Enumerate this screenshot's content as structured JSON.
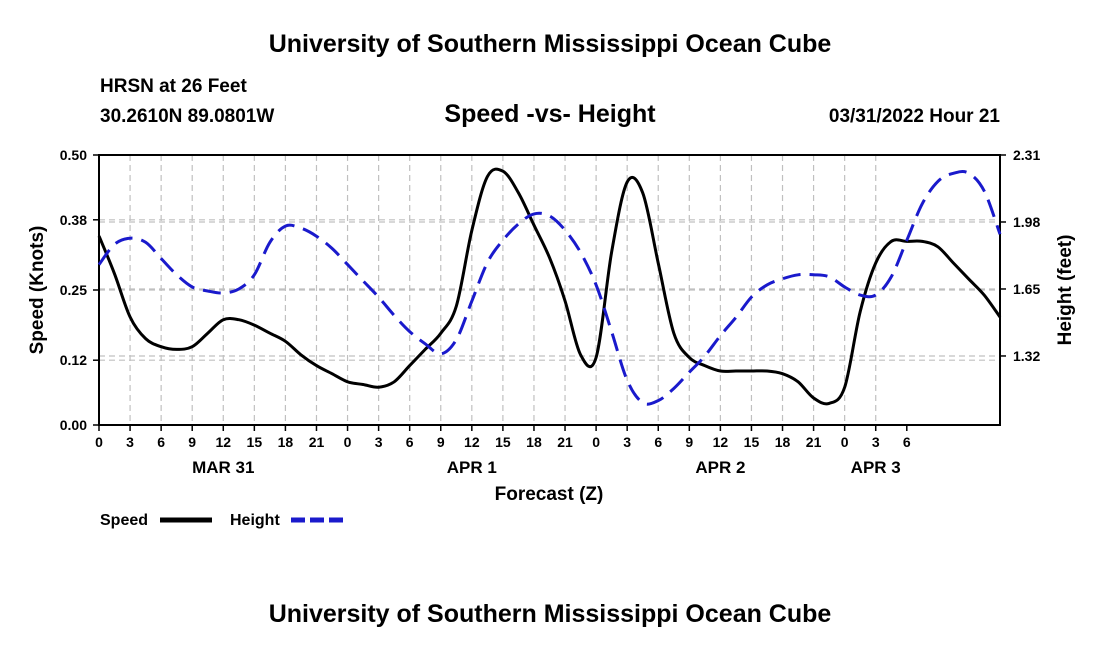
{
  "header": {
    "title": "University of Southern Mississippi Ocean Cube",
    "station": "HRSN at 26 Feet",
    "coords": "30.2610N  89.0801W",
    "date": "03/31/2022 Hour 21",
    "footer_title": "University of Southern Mississippi Ocean Cube"
  },
  "colors": {
    "speed": "#000000",
    "height": "#1a1acc",
    "grid": "#c0c0c0"
  },
  "chart_data": {
    "type": "line",
    "title": "Speed -vs- Height",
    "xlabel": "Forecast (Z)",
    "ylabel": "Speed (Knots)",
    "y2label": "Height (feet)",
    "xlim": [
      0,
      87
    ],
    "ylim": [
      0,
      0.5
    ],
    "y2lim": [
      0.98,
      2.31
    ],
    "y_ticks": [
      "0.00",
      "0.12",
      "0.25",
      "0.38",
      "0.50"
    ],
    "y2_ticks": [
      "1.32",
      "1.65",
      "1.98",
      "2.31"
    ],
    "x_tick_labels": [
      "0",
      "3",
      "6",
      "9",
      "12",
      "15",
      "18",
      "21",
      "0",
      "3",
      "6",
      "9",
      "12",
      "15",
      "18",
      "21",
      "0",
      "3",
      "6",
      "9",
      "12",
      "15",
      "18",
      "21",
      "0",
      "3",
      "6"
    ],
    "date_labels": [
      {
        "label": "MAR 31",
        "hour": 12
      },
      {
        "label": "APR 1",
        "hour": 36
      },
      {
        "label": "APR 2",
        "hour": 60
      },
      {
        "label": "APR 3",
        "hour": 75
      }
    ],
    "grid": true,
    "legend_position": "bottom-left",
    "series": [
      {
        "name": "Speed",
        "axis": "left",
        "style": "solid",
        "x": [
          0,
          1.5,
          3,
          4.5,
          6,
          7.5,
          9,
          10.5,
          12,
          13.5,
          15,
          16.5,
          18,
          19.5,
          21,
          22.5,
          24,
          25.5,
          27,
          28.5,
          30,
          31.5,
          33,
          34.5,
          36,
          37.5,
          39,
          40.5,
          42,
          43.5,
          45,
          46.5,
          48,
          49.5,
          51,
          52.5,
          54,
          55.5,
          57,
          58.5,
          60,
          61.5,
          63,
          64.5,
          66,
          67.5,
          69,
          70.5,
          72,
          73.5,
          75,
          76.5,
          78,
          79.5,
          81,
          82.5,
          84,
          85.5,
          87
        ],
        "values": [
          0.35,
          0.28,
          0.2,
          0.16,
          0.145,
          0.14,
          0.145,
          0.17,
          0.195,
          0.195,
          0.185,
          0.17,
          0.155,
          0.13,
          0.11,
          0.095,
          0.08,
          0.075,
          0.07,
          0.08,
          0.11,
          0.14,
          0.17,
          0.22,
          0.36,
          0.46,
          0.47,
          0.43,
          0.37,
          0.31,
          0.23,
          0.13,
          0.125,
          0.32,
          0.45,
          0.43,
          0.3,
          0.17,
          0.125,
          0.11,
          0.1,
          0.1,
          0.1,
          0.1,
          0.095,
          0.08,
          0.05,
          0.04,
          0.07,
          0.21,
          0.3,
          0.34,
          0.34,
          0.34,
          0.33,
          0.3,
          0.27,
          0.24,
          0.2
        ]
      },
      {
        "name": "Height",
        "axis": "right",
        "style": "dashed",
        "x": [
          0,
          1.5,
          3,
          4.5,
          6,
          7.5,
          9,
          10.5,
          12,
          13.5,
          15,
          16.5,
          18,
          19.5,
          21,
          22.5,
          24,
          25.5,
          27,
          28.5,
          30,
          31.5,
          33,
          34.5,
          36,
          37.5,
          39,
          40.5,
          42,
          43.5,
          45,
          46.5,
          48,
          49.5,
          51,
          52.5,
          54,
          55.5,
          57,
          58.5,
          60,
          61.5,
          63,
          64.5,
          66,
          67.5,
          69,
          70.5,
          72,
          73.5,
          75,
          76.5,
          78,
          79.5,
          81,
          82.5,
          84,
          85.5,
          87
        ],
        "values": [
          1.77,
          1.87,
          1.9,
          1.88,
          1.8,
          1.72,
          1.66,
          1.64,
          1.63,
          1.65,
          1.72,
          1.88,
          1.96,
          1.95,
          1.91,
          1.85,
          1.77,
          1.69,
          1.61,
          1.52,
          1.44,
          1.38,
          1.33,
          1.4,
          1.59,
          1.78,
          1.89,
          1.97,
          2.02,
          2.01,
          1.94,
          1.83,
          1.67,
          1.44,
          1.2,
          1.09,
          1.1,
          1.16,
          1.24,
          1.32,
          1.42,
          1.51,
          1.61,
          1.67,
          1.7,
          1.72,
          1.72,
          1.71,
          1.66,
          1.62,
          1.62,
          1.71,
          1.89,
          2.07,
          2.18,
          2.22,
          2.22,
          2.13,
          1.92
        ]
      }
    ]
  },
  "legend": {
    "speed_label": "Speed",
    "height_label": "Height"
  }
}
